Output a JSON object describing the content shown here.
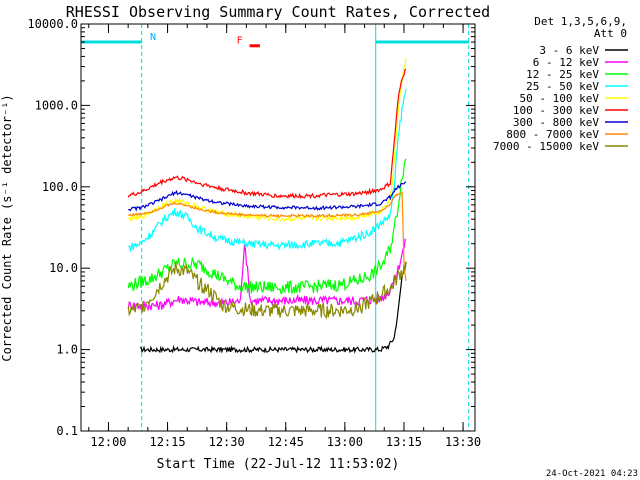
{
  "chart_data": {
    "type": "line",
    "title": "RHESSI Observing Summary Count Rates, Corrected",
    "xlabel": "Start Time (22-Jul-12 11:53:02)",
    "ylabel": "Corrected Count Rate (s⁻¹ detector⁻¹)",
    "x_unit": "minutes after 11:53:02",
    "xlim": [
      0,
      100
    ],
    "x_ticks": [
      {
        "t": 6.97,
        "label": "12:00"
      },
      {
        "t": 21.97,
        "label": "12:15"
      },
      {
        "t": 36.97,
        "label": "12:30"
      },
      {
        "t": 51.97,
        "label": "12:45"
      },
      {
        "t": 66.97,
        "label": "13:00"
      },
      {
        "t": 81.97,
        "label": "13:15"
      },
      {
        "t": 96.97,
        "label": "13:30"
      }
    ],
    "yscale": "log",
    "ylim": [
      0.1,
      10000
    ],
    "y_ticks": [
      {
        "v": 0.1,
        "label": "0.1"
      },
      {
        "v": 1,
        "label": "1.0"
      },
      {
        "v": 10,
        "label": "10.0"
      },
      {
        "v": 100,
        "label": "100.0"
      },
      {
        "v": 1000,
        "label": "1000.0"
      },
      {
        "v": 10000,
        "label": "10000.0"
      }
    ],
    "legend_header": [
      "Det 1,3,5,6,9,",
      "Att 0"
    ],
    "legend_position": "right",
    "series": [
      {
        "name": "3 - 6 keV",
        "color": "#000000",
        "x": [
          15,
          25,
          35,
          45,
          55,
          65,
          70,
          76,
          78,
          79.5,
          80.5,
          81.5,
          82.5
        ],
        "y": [
          1,
          1,
          1,
          1,
          1,
          1,
          1,
          1,
          1.1,
          1.4,
          3,
          8,
          12
        ]
      },
      {
        "name": "6 - 12 keV",
        "color": "#ff00ff",
        "x": [
          12,
          20,
          25,
          30,
          38,
          40.5,
          41.5,
          43,
          50,
          60,
          70,
          76,
          78,
          80,
          81.5,
          82.5
        ],
        "y": [
          3.5,
          3.5,
          4.2,
          3.8,
          3.8,
          4,
          22,
          4,
          4,
          4,
          4,
          4.2,
          5,
          8,
          15,
          22
        ]
      },
      {
        "name": "12 - 25 keV",
        "color": "#00ff00",
        "x": [
          12,
          18,
          24,
          30,
          36,
          40,
          45,
          55,
          65,
          70,
          74,
          77,
          78.5,
          79.5,
          80.5,
          81.5,
          82.5
        ],
        "y": [
          6,
          7.5,
          11.5,
          11,
          7.5,
          6,
          5.8,
          5.8,
          6.2,
          7,
          8.5,
          12,
          18,
          30,
          60,
          140,
          220
        ]
      },
      {
        "name": "25 - 50 keV",
        "color": "#00ffff",
        "x": [
          12,
          15,
          18,
          21,
          24,
          27,
          30,
          35,
          42,
          50,
          60,
          66,
          70,
          73,
          76,
          78.5,
          79.5,
          80.5,
          81.5,
          82.5
        ],
        "y": [
          18,
          20,
          27,
          40,
          50,
          42,
          30,
          23,
          20,
          19,
          20,
          20.5,
          24,
          27,
          35,
          45,
          100,
          400,
          900,
          1600
        ]
      },
      {
        "name": "50 - 100 keV",
        "color": "#ffff00",
        "x": [
          12,
          15,
          18,
          21,
          24,
          27,
          30,
          35,
          42,
          50,
          60,
          70,
          76,
          78.5,
          79.5,
          80.5,
          81.5,
          82.5
        ],
        "y": [
          40,
          42,
          50,
          60,
          68,
          63,
          56,
          48,
          43,
          40,
          41,
          42,
          50,
          70,
          200,
          900,
          2000,
          3800
        ]
      },
      {
        "name": "100 - 300 keV",
        "color": "#ff0000",
        "x": [
          12,
          15,
          18,
          21,
          24,
          27,
          30,
          35,
          42,
          50,
          60,
          70,
          76,
          78.5,
          79.5,
          80.5,
          81.5,
          82.5
        ],
        "y": [
          78,
          85,
          100,
          118,
          130,
          123,
          110,
          96,
          84,
          77,
          78,
          82,
          92,
          110,
          350,
          1200,
          2200,
          2800
        ]
      },
      {
        "name": "300 - 800 keV",
        "color": "#0000cc",
        "x": [
          12,
          15,
          18,
          21,
          24,
          27,
          30,
          35,
          42,
          50,
          60,
          70,
          76,
          78.5,
          80,
          82.5
        ],
        "y": [
          53,
          55,
          62,
          72,
          85,
          80,
          72,
          64,
          58,
          56,
          55,
          57,
          62,
          75,
          95,
          115
        ]
      },
      {
        "name": "800 - 7000 keV",
        "color": "#ff8800",
        "x": [
          12,
          15,
          18,
          21,
          24,
          27,
          30,
          35,
          42,
          50,
          60,
          70,
          76,
          78.5,
          80,
          81.5,
          82,
          82.5
        ],
        "y": [
          45,
          46,
          50,
          57,
          63,
          59,
          53,
          48,
          45,
          44,
          44,
          45,
          50,
          60,
          80,
          85,
          10,
          7
        ]
      },
      {
        "name": "7000 - 15000 keV",
        "color": "#888800",
        "x": [
          12,
          15,
          18,
          21,
          24,
          27,
          30,
          33,
          36,
          40,
          45,
          55,
          65,
          70,
          74,
          77,
          79,
          80.5,
          82,
          82.5
        ],
        "y": [
          3,
          3.2,
          4.5,
          7,
          10,
          9,
          6.5,
          5,
          3.5,
          3.2,
          3,
          3,
          3,
          3.2,
          4,
          5,
          6,
          8,
          10,
          12
        ]
      }
    ],
    "annotations": [
      {
        "text": "N",
        "color": "#00aaff",
        "x": 17.5,
        "y": 6400
      },
      {
        "text": "F",
        "color": "#ff0000",
        "x": 39.5,
        "y": 5800
      }
    ],
    "night_intervals": [
      [
        0,
        15.4
      ],
      [
        74.8,
        98.4
      ]
    ],
    "flare_flag": {
      "x": [
        42.8,
        45.4
      ],
      "y": 5400,
      "color": "#ff0000"
    },
    "footer": "24-Oct-2021 04:23"
  }
}
